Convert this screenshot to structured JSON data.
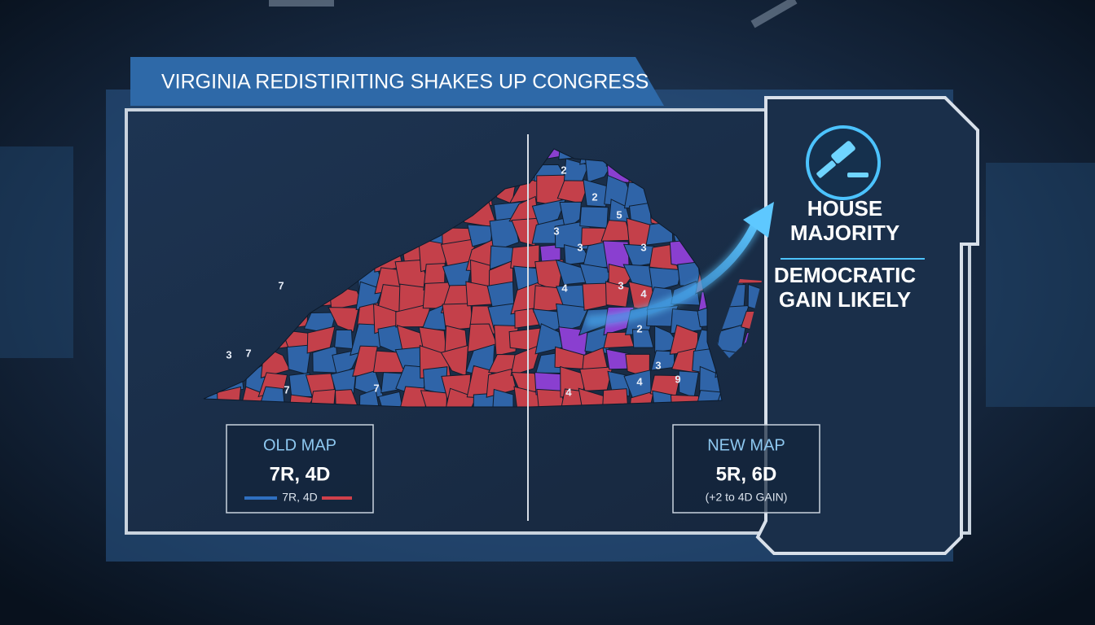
{
  "title": "VIRGINIA REDISTIRITING SHAKES UP CONGRESS",
  "old_map": {
    "label": "OLD MAP",
    "result": "7R, 4D",
    "legend": "7R, 4D"
  },
  "new_map": {
    "label": "NEW MAP",
    "result": "5R, 6D",
    "note": "(+2 to 4D GAIN)"
  },
  "side_panel": {
    "headline": "HOUSE MAJORITY",
    "subhead": "DEMOCRATIC GAIN LIKELY"
  },
  "map": {
    "old_labels": [
      "7",
      "3",
      "7",
      "7",
      "7"
    ],
    "new_labels": [
      "2",
      "2",
      "3",
      "3",
      "5",
      "3",
      "4",
      "3",
      "4",
      "2",
      "3",
      "4",
      "9",
      "4"
    ]
  }
}
